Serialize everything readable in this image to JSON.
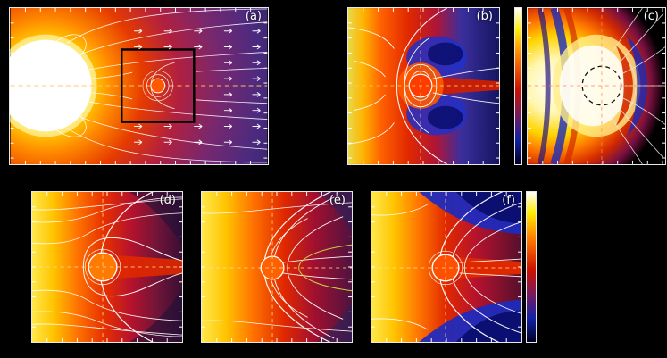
{
  "figure": {
    "panels": [
      {
        "id": "a",
        "label": "(a)"
      },
      {
        "id": "b",
        "label": "(b)"
      },
      {
        "id": "c",
        "label": "(c)"
      },
      {
        "id": "d",
        "label": "(d)"
      },
      {
        "id": "e",
        "label": "(e)"
      },
      {
        "id": "f",
        "label": "(f)"
      }
    ],
    "colors": {
      "background": "#000000",
      "frame": "#e8e8e8",
      "streamline": "#ffffff",
      "crosshair_dash": "#ffc966"
    }
  },
  "chart_data": {
    "type": "heatmap",
    "title": "",
    "panels": [
      {
        "label": "(a)",
        "content": "white stellar disk at left with radial white streamlines, rows of small white wind arrows, orange dashed equatorial line, black inset box around a small planet with concentric white field-line circles; colors grade from white/yellow near star to red then purple at right"
      },
      {
        "label": "(b)",
        "content": "planet close-up: yellow inflow at left, red compressed dayside, white dipole field loops around orange planet, blue tail lobes above and below, white bow-shock arc, dashed orange crosshairs"
      },
      {
        "label": "(c)",
        "content": "bright white/yellow region at left with dark-blue striations, red fringe nose, black dashed circle marking planet, thin white open field lines fanning to right over black background, dashed crosshairs"
      },
      {
        "label": "(d)",
        "content": "yellow-to-red flow with white bow shock and magnetopause around white-ringed orange planet, narrow red tail along dashed centerline, dashed crosshairs"
      },
      {
        "label": "(e)",
        "content": "wider draped white field lines around orange planet, yellow-to-red background darkening to right, dashed crosshairs"
      },
      {
        "label": "(f)",
        "content": "large dark-blue tail lobes above and below a red current-sheet band, draped white field lines, orange planet with white ring, dashed crosshairs"
      }
    ],
    "colorbars": [
      {
        "position": "left of panel (c)",
        "colors_top_to_bottom": [
          "#ffffff",
          "#ffee00",
          "#ff7700",
          "#cc1100",
          "#7a1a5a",
          "#1122aa",
          "#000022"
        ]
      },
      {
        "position": "right of panel (f)",
        "colors_top_to_bottom": [
          "#ffffff",
          "#ffee00",
          "#ff7700",
          "#cc1100",
          "#7a1a5a",
          "#1122aa",
          "#000022"
        ]
      }
    ],
    "axis_tick_labels": "none visible (unlabeled white tick marks on all frames)",
    "legend": "none"
  }
}
